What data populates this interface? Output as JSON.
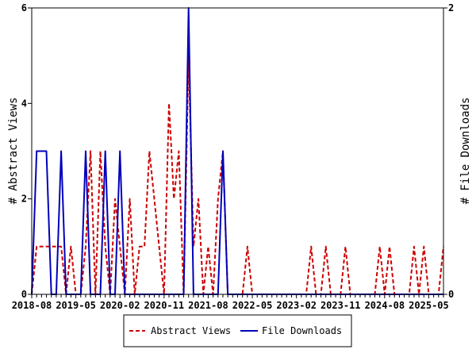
{
  "chart_data": {
    "type": "line",
    "title": "",
    "xlabel": "",
    "ylabel": "# Abstract Views",
    "y2label": "# File Downloads",
    "start_month": "2018-08",
    "months_count": 85,
    "x_tick_labels": [
      "2018-08",
      "2019-05",
      "2020-02",
      "2020-11",
      "2021-08",
      "2022-05",
      "2023-02",
      "2023-11",
      "2024-08",
      "2025-05"
    ],
    "ylim": [
      0,
      6
    ],
    "y_ticks": [
      0,
      2,
      4,
      6
    ],
    "y2lim": [
      0,
      2
    ],
    "y2_ticks": [
      0,
      2
    ],
    "grid": false,
    "legend_position": "bottom",
    "series": [
      {
        "name": "Abstract Views",
        "axis": "left",
        "color": "#cc0000",
        "style": "dashed",
        "values": [
          0,
          1,
          1,
          1,
          1,
          1,
          1,
          0,
          1,
          0,
          0,
          1,
          3,
          0,
          3,
          1,
          0,
          2,
          1,
          0,
          2,
          0,
          1,
          1,
          3,
          2,
          1,
          0,
          4,
          2,
          3,
          0,
          5,
          1,
          2,
          0,
          1,
          0,
          2,
          3,
          0,
          0,
          0,
          0,
          1,
          0,
          0,
          0,
          0,
          0,
          0,
          0,
          0,
          0,
          0,
          0,
          0,
          1,
          0,
          0,
          1,
          0,
          0,
          0,
          1,
          0,
          0,
          0,
          0,
          0,
          0,
          1,
          0,
          1,
          0,
          0,
          0,
          0,
          1,
          0,
          1,
          0,
          0,
          0,
          1
        ]
      },
      {
        "name": "File Downloads",
        "axis": "right",
        "color": "#0000bb",
        "style": "solid",
        "values": [
          0,
          1,
          1,
          1,
          0,
          0,
          1,
          0,
          0,
          0,
          0,
          1,
          0,
          0,
          0,
          1,
          0,
          0,
          1,
          0,
          0,
          0,
          0,
          0,
          0,
          0,
          0,
          0,
          0,
          0,
          0,
          0,
          2,
          0,
          0,
          0,
          0,
          0,
          0,
          1,
          0,
          0,
          0,
          0,
          0,
          0,
          0,
          0,
          0,
          0,
          0,
          0,
          0,
          0,
          0,
          0,
          0,
          0,
          0,
          0,
          0,
          0,
          0,
          0,
          0,
          0,
          0,
          0,
          0,
          0,
          0,
          0,
          0,
          0,
          0,
          0,
          0,
          0,
          0,
          0,
          0,
          0,
          0,
          0,
          0
        ]
      }
    ]
  }
}
